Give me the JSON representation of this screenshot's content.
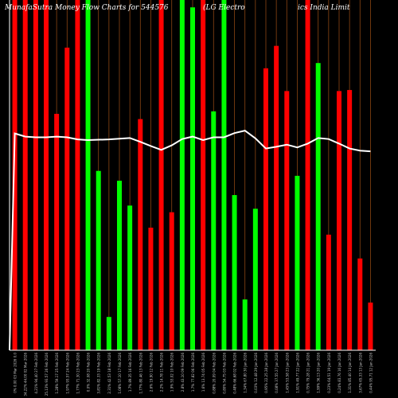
{
  "chart_data": {
    "type": "bar",
    "title_parts": [
      "MunafaSutra  Money Flow  Charts for 544576",
      "(LG Electro",
      "ics India  Limit"
    ],
    "background": "#000000",
    "colors": {
      "up": "#ff0000",
      "down": "#00ff00",
      "volume_line": "#ffffff",
      "grid": "#8b4513",
      "axis": "#ffffff"
    },
    "bars": [
      {
        "label": "0% 0.00 03 Mar 2026 0.0",
        "color": "red",
        "top": 1.0
      },
      {
        "label": "34.22% 44.00 02 Mar 2026",
        "color": "red",
        "top": 1.0
      },
      {
        "label": "4.21% 94.40 27 Feb 2026",
        "color": "red",
        "top": 1.0
      },
      {
        "label": "25.13% 93.57 26 Feb 2026",
        "color": "red",
        "top": 1.0
      },
      {
        "label": "1.28% 59.17 25 Feb 2026",
        "color": "red",
        "top": 0.675
      },
      {
        "label": "1.97% 93.57 24 Feb 2026",
        "color": "red",
        "top": 0.864
      },
      {
        "label": "1.77% 71.30 23 Feb 2026",
        "color": "red",
        "top": 1.0
      },
      {
        "label": "0.0% 32.08 20 Feb 2026",
        "color": "green",
        "top": 1.0
      },
      {
        "label": "3.81% 82.33 19 Feb 2026",
        "color": "green",
        "top": 0.512
      },
      {
        "label": "2.31% 42.53 18 Feb 2026",
        "color": "green",
        "top": 0.095
      },
      {
        "label": "1.08% 57.10 17 Feb 2026",
        "color": "green",
        "top": 0.484
      },
      {
        "label": "1.7% 89.35 16 Feb 2026",
        "color": "green",
        "top": 0.413
      },
      {
        "label": "1.77% 80.46 13 Feb 2026",
        "color": "red",
        "top": 0.66
      },
      {
        "label": "2.6% 19.90 12 Feb 2026",
        "color": "red",
        "top": 0.35
      },
      {
        "label": "2.2% 14.78 11 Feb 2026",
        "color": "red",
        "top": 1.0
      },
      {
        "label": "1.9% 53.02 10 Feb 2026",
        "color": "red",
        "top": 0.394
      },
      {
        "label": "2.8% 43.10 09 Feb 2026",
        "color": "green",
        "top": 1.0
      },
      {
        "label": "1.7% 77.82 06 Feb 2026",
        "color": "green",
        "top": 0.979
      },
      {
        "label": "1.6% 13.74 05 Feb 2026",
        "color": "red",
        "top": 1.0
      },
      {
        "label": "0.88% 20.09 04 Feb 2026",
        "color": "green",
        "top": 0.682
      },
      {
        "label": "0.80% 54.75 03 Feb 2026",
        "color": "green",
        "top": 1.0
      },
      {
        "label": "0.48% 66.68 02 Feb 2026",
        "color": "green",
        "top": 0.443
      },
      {
        "label": "1.34% 67.80 30 Jan 2026",
        "color": "green",
        "top": 0.145
      },
      {
        "label": "0.03% 12.48 29 Jan 2026",
        "color": "green",
        "top": 0.404
      },
      {
        "label": "0.95% 22.25 28 Jan 2026",
        "color": "red",
        "top": 0.805
      },
      {
        "label": "0.08% 37.55 27 Jan 2026",
        "color": "red",
        "top": 0.869
      },
      {
        "label": "1.45% 53.58 23 Jan 2026",
        "color": "red",
        "top": 0.74
      },
      {
        "label": "1.91% 49.77 22 Jan 2026",
        "color": "green",
        "top": 0.498
      },
      {
        "label": "0.75% 79.28 21 Jan 2026",
        "color": "red",
        "top": 1.0
      },
      {
        "label": "1.99% 36.13 20 Jan 2026",
        "color": "green",
        "top": 0.82
      },
      {
        "label": "0.23% 64.51 19 Jan 2026",
        "color": "red",
        "top": 0.33
      },
      {
        "label": "0.24% 83.76 16 Jan 2026",
        "color": "red",
        "top": 0.74
      },
      {
        "label": "1.31% 85.40 14 Jan 2026",
        "color": "red",
        "top": 0.743
      },
      {
        "label": "3.67% 65.33 13 Jan 2026",
        "color": "red",
        "top": 0.262
      },
      {
        "label": "0.44% 95.71 12 Jan 2026",
        "color": "red",
        "top": 0.136
      }
    ],
    "volume_line": [
      0.619,
      0.61,
      0.608,
      0.608,
      0.61,
      0.608,
      0.602,
      0.6,
      0.601,
      0.602,
      0.604,
      0.606,
      0.595,
      0.583,
      0.572,
      0.585,
      0.603,
      0.61,
      0.6,
      0.608,
      0.608,
      0.62,
      0.627,
      0.605,
      0.576,
      0.581,
      0.587,
      0.579,
      0.59,
      0.606,
      0.603,
      0.59,
      0.576,
      0.57,
      0.568
    ]
  }
}
